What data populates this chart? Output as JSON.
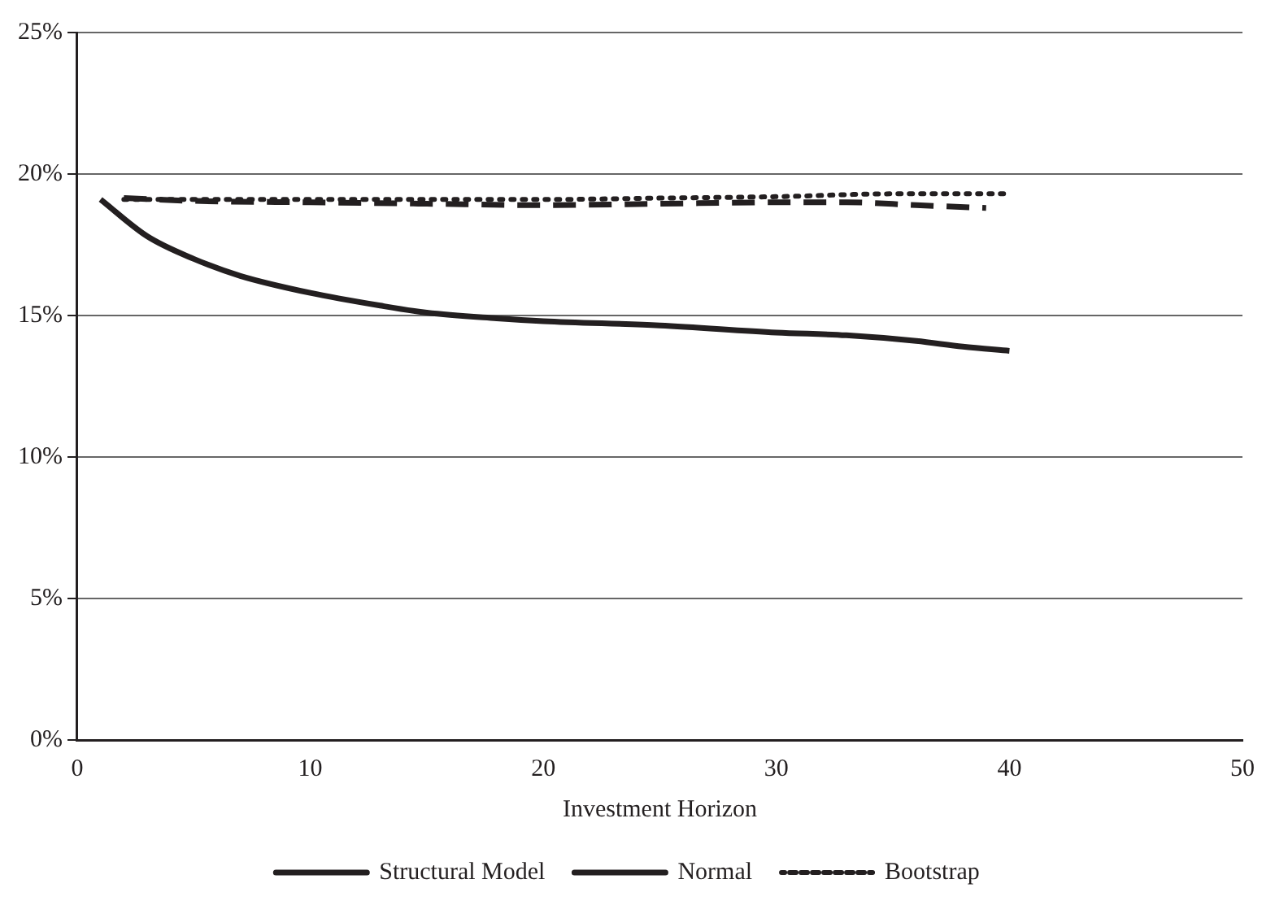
{
  "chart_data": {
    "type": "line",
    "xlabel": "Investment Horizon",
    "x": [
      1,
      3,
      5,
      7,
      10,
      13,
      15,
      18,
      20,
      25,
      30,
      33,
      36,
      38,
      40
    ],
    "series": [
      {
        "name": "Structural Model",
        "color": "#231f20",
        "line_style": "solid",
        "values": [
          19.1,
          17.8,
          17.0,
          16.4,
          15.8,
          15.35,
          15.1,
          14.9,
          14.8,
          14.65,
          14.4,
          14.3,
          14.1,
          13.9,
          13.75
        ]
      },
      {
        "name": "Normal",
        "color": "#231f20",
        "line_style": "dashed",
        "x": [
          2,
          5,
          10,
          15,
          20,
          25,
          30,
          33,
          36,
          39
        ],
        "values": [
          19.15,
          19.05,
          19.0,
          18.95,
          18.9,
          18.95,
          19.0,
          19.0,
          18.9,
          18.8
        ]
      },
      {
        "name": "Bootstrap",
        "color": "#231f20",
        "line_style": "dotted",
        "x": [
          2,
          5,
          10,
          15,
          20,
          25,
          30,
          35,
          40
        ],
        "values": [
          19.1,
          19.1,
          19.1,
          19.1,
          19.1,
          19.15,
          19.2,
          19.3,
          19.3
        ]
      }
    ],
    "xlim": [
      0,
      50
    ],
    "xticks": [
      0,
      10,
      20,
      30,
      40,
      50
    ],
    "ylim": [
      0,
      25
    ],
    "yticks": [
      {
        "value": 0,
        "label": "0%"
      },
      {
        "value": 5,
        "label": "5%"
      },
      {
        "value": 10,
        "label": "10%"
      },
      {
        "value": 15,
        "label": "15%"
      },
      {
        "value": 20,
        "label": "20%"
      },
      {
        "value": 25,
        "label": "25%"
      }
    ],
    "grid": "y",
    "legend": "bottom",
    "marker": "none"
  }
}
